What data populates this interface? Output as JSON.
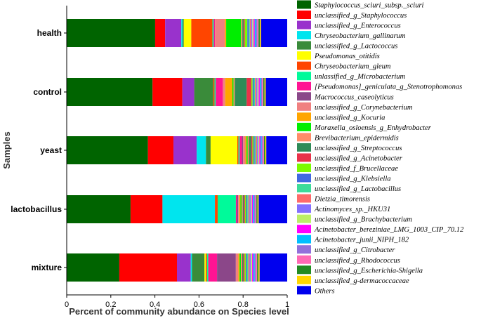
{
  "chart_data": {
    "type": "bar",
    "orientation": "horizontal",
    "stacked": true,
    "title": "",
    "xlabel": "Percent of community abundance on Species level",
    "ylabel": "Samples",
    "xlim": [
      0,
      1
    ],
    "xticks": [
      "0",
      "0.2",
      "0.4",
      "0.6",
      "0.8",
      "1"
    ],
    "categories": [
      "health",
      "control",
      "yeast",
      "lactobacillus",
      "mixture"
    ],
    "series": [
      {
        "name": "Staphylococcus_sciuri_subsp._sciuri",
        "color": "#006400",
        "values": [
          0.355,
          0.36,
          0.35,
          0.28,
          0.21
        ]
      },
      {
        "name": "unclassified_g_Staphylococcus",
        "color": "#ff0000",
        "values": [
          0.04,
          0.125,
          0.11,
          0.14,
          0.23
        ]
      },
      {
        "name": "unclassified_g_Enterococcus",
        "color": "#9932cc",
        "values": [
          0.065,
          0.05,
          0.1,
          0.0,
          0.055
        ]
      },
      {
        "name": "Chryseobacterium_gallinarum",
        "color": "#00e5ee",
        "values": [
          0.005,
          0.0,
          0.04,
          0.23,
          0.005
        ]
      },
      {
        "name": "unclassified_g_Lactococcus",
        "color": "#3a8b3a",
        "values": [
          0.005,
          0.08,
          0.02,
          0.0,
          0.05
        ]
      },
      {
        "name": "Pseudomonas_otitidis",
        "color": "#ffff00",
        "values": [
          0.03,
          0.0,
          0.115,
          0.0,
          0.005
        ]
      },
      {
        "name": "Chryseobacterium_gleum",
        "color": "#ff4500",
        "values": [
          0.085,
          0.005,
          0.005,
          0.012,
          0.005
        ]
      },
      {
        "name": "unlassified_g_Microbacterium",
        "color": "#00fa9a",
        "values": [
          0.005,
          0.005,
          0.005,
          0.08,
          0.005
        ]
      },
      {
        "name": "[Pseudomonas]_geniculata_g_Stenotrophomonas",
        "color": "#ff1493",
        "values": [
          0.005,
          0.03,
          0.01,
          0.005,
          0.035
        ]
      },
      {
        "name": "Macrococcus_caseolyticus",
        "color": "#8b4789",
        "values": [
          0.0,
          0.0,
          0.005,
          0.005,
          0.075
        ]
      },
      {
        "name": "unclassified_g_Corynebacterium",
        "color": "#f08080",
        "values": [
          0.04,
          0.01,
          0.01,
          0.005,
          0.01
        ]
      },
      {
        "name": "unclassified_g_Kocuria",
        "color": "#ffa500",
        "values": [
          0.005,
          0.03,
          0.005,
          0.005,
          0.005
        ]
      },
      {
        "name": "Moraxella_osloensis_g_Enhydrobacter",
        "color": "#00ee00",
        "values": [
          0.06,
          0.005,
          0.005,
          0.005,
          0.005
        ]
      },
      {
        "name": "Brevibacterium_epidermidis",
        "color": "#ff8c69",
        "values": [
          0.005,
          0.005,
          0.005,
          0.005,
          0.005
        ]
      },
      {
        "name": "unclassified_g_Streptococcus",
        "color": "#2e8b57",
        "values": [
          0.005,
          0.05,
          0.01,
          0.005,
          0.005
        ]
      },
      {
        "name": "unclassified_g_Acinetobacter",
        "color": "#e9334a",
        "values": [
          0.005,
          0.02,
          0.005,
          0.005,
          0.005
        ]
      },
      {
        "name": "unclassified_f_Brucellaceae",
        "color": "#7cfc00",
        "values": [
          0.01,
          0.005,
          0.005,
          0.005,
          0.005
        ]
      },
      {
        "name": "unclassified_g_Klebsiella",
        "color": "#4169e1",
        "values": [
          0.005,
          0.005,
          0.005,
          0.005,
          0.005
        ]
      },
      {
        "name": "unclassified_g_Lactobacillus",
        "color": "#3cdc9a",
        "values": [
          0.005,
          0.005,
          0.005,
          0.005,
          0.005
        ]
      },
      {
        "name": "Dietzia_timorensis",
        "color": "#ff6a6a",
        "values": [
          0.005,
          0.005,
          0.005,
          0.005,
          0.005
        ]
      },
      {
        "name": "Actinomyces_sp._HKU31",
        "color": "#8470ff",
        "values": [
          0.005,
          0.005,
          0.005,
          0.005,
          0.005
        ]
      },
      {
        "name": "unclassified_g_Brachybacterium",
        "color": "#bcee68",
        "values": [
          0.005,
          0.005,
          0.005,
          0.005,
          0.005
        ]
      },
      {
        "name": "Acinetobacter_bereziniae_LMG_1003_CIP_70.12",
        "color": "#ff00ff",
        "values": [
          0.005,
          0.005,
          0.005,
          0.005,
          0.005
        ]
      },
      {
        "name": "Acinetobacter_junii_NIPH_182",
        "color": "#00bfff",
        "values": [
          0.005,
          0.005,
          0.005,
          0.005,
          0.005
        ]
      },
      {
        "name": "unclassified_g_Citrobacter",
        "color": "#9370db",
        "values": [
          0.005,
          0.005,
          0.005,
          0.005,
          0.005
        ]
      },
      {
        "name": "unclassified_g_Rhodococcus",
        "color": "#ff69b4",
        "values": [
          0.005,
          0.005,
          0.005,
          0.005,
          0.005
        ]
      },
      {
        "name": "unclassified_g_Escherichia-Shigella",
        "color": "#228b22",
        "values": [
          0.005,
          0.005,
          0.005,
          0.005,
          0.005
        ]
      },
      {
        "name": "unclassified_g-dermacoccaceae",
        "color": "#ffd700",
        "values": [
          0.005,
          0.005,
          0.005,
          0.005,
          0.005
        ]
      },
      {
        "name": "Others",
        "color": "#0000ee",
        "values": [
          0.105,
          0.09,
          0.09,
          0.125,
          0.11
        ]
      }
    ]
  }
}
